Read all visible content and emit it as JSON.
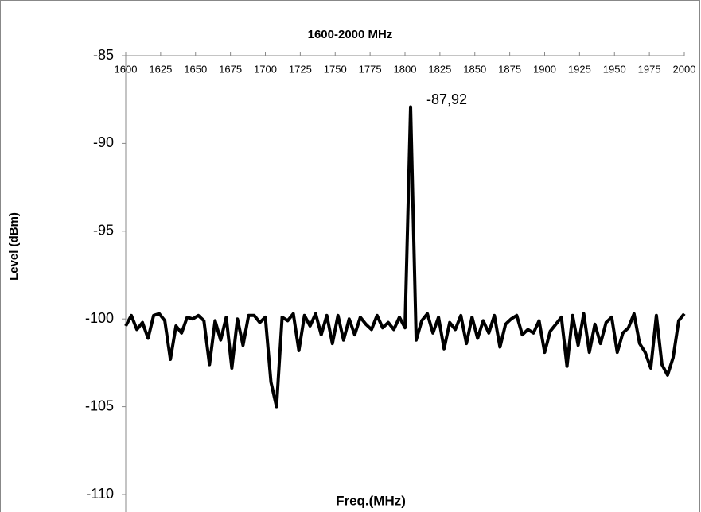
{
  "chart_data": {
    "type": "line",
    "title": "1600-2000 MHz",
    "x_label": "Freq.(MHz)",
    "y_label": "Level (dBm)",
    "x": [
      1600,
      1604,
      1608,
      1612,
      1616,
      1620,
      1624,
      1628,
      1632,
      1636,
      1640,
      1644,
      1648,
      1652,
      1656,
      1660,
      1664,
      1668,
      1672,
      1676,
      1680,
      1684,
      1688,
      1692,
      1696,
      1700,
      1704,
      1708,
      1712,
      1716,
      1720,
      1724,
      1728,
      1732,
      1736,
      1740,
      1744,
      1748,
      1752,
      1756,
      1760,
      1764,
      1768,
      1772,
      1776,
      1780,
      1784,
      1788,
      1792,
      1796,
      1800,
      1804,
      1808,
      1812,
      1816,
      1820,
      1824,
      1828,
      1832,
      1836,
      1840,
      1844,
      1848,
      1852,
      1856,
      1860,
      1864,
      1868,
      1872,
      1876,
      1880,
      1884,
      1888,
      1892,
      1896,
      1900,
      1904,
      1908,
      1912,
      1916,
      1920,
      1924,
      1928,
      1932,
      1936,
      1940,
      1944,
      1948,
      1952,
      1956,
      1960,
      1964,
      1968,
      1972,
      1976,
      1980,
      1984,
      1988,
      1992,
      1996,
      2000
    ],
    "series": [
      {
        "color": "#000000",
        "values": [
          -100.4,
          -99.8,
          -100.6,
          -100.2,
          -101.1,
          -99.8,
          -99.7,
          -100.1,
          -102.3,
          -100.4,
          -100.8,
          -99.9,
          -100,
          -99.8,
          -100.1,
          -102.6,
          -100.1,
          -101.2,
          -99.9,
          -102.8,
          -100,
          -101.5,
          -99.8,
          -99.8,
          -100.2,
          -99.9,
          -103.6,
          -105,
          -99.9,
          -100.1,
          -99.7,
          -101.8,
          -99.8,
          -100.4,
          -99.7,
          -100.9,
          -99.8,
          -101.4,
          -99.8,
          -101.2,
          -100,
          -100.9,
          -99.9,
          -100.3,
          -100.6,
          -99.8,
          -100.5,
          -100.2,
          -100.6,
          -99.9,
          -100.5,
          -87.92,
          -101.2,
          -100.1,
          -99.7,
          -100.8,
          -99.9,
          -101.7,
          -100.2,
          -100.6,
          -99.8,
          -101.4,
          -99.9,
          -101.1,
          -100.1,
          -100.8,
          -99.8,
          -101.6,
          -100.3,
          -100,
          -99.8,
          -100.9,
          -100.6,
          -100.8,
          -100.1,
          -101.9,
          -100.7,
          -100.3,
          -99.9,
          -102.7,
          -99.8,
          -101.5,
          -99.7,
          -101.9,
          -100.3,
          -101.4,
          -100.2,
          -99.9,
          -101.9,
          -100.8,
          -100.5,
          -99.7,
          -101.4,
          -101.9,
          -102.8,
          -99.8,
          -102.6,
          -103.2,
          -102.2,
          -100.1,
          -99.7
        ]
      }
    ],
    "annotations": [
      {
        "x": 1804,
        "value": -87.92,
        "label": "-87,92"
      }
    ],
    "xlim": [
      1600,
      2000
    ],
    "xticks": [
      1600,
      1625,
      1650,
      1675,
      1700,
      1725,
      1750,
      1775,
      1800,
      1825,
      1850,
      1875,
      1900,
      1925,
      1950,
      1975,
      2000
    ],
    "ylim": [
      -110,
      -85
    ],
    "yticks": [
      -85,
      -90,
      -95,
      -100,
      -105,
      -110
    ]
  }
}
